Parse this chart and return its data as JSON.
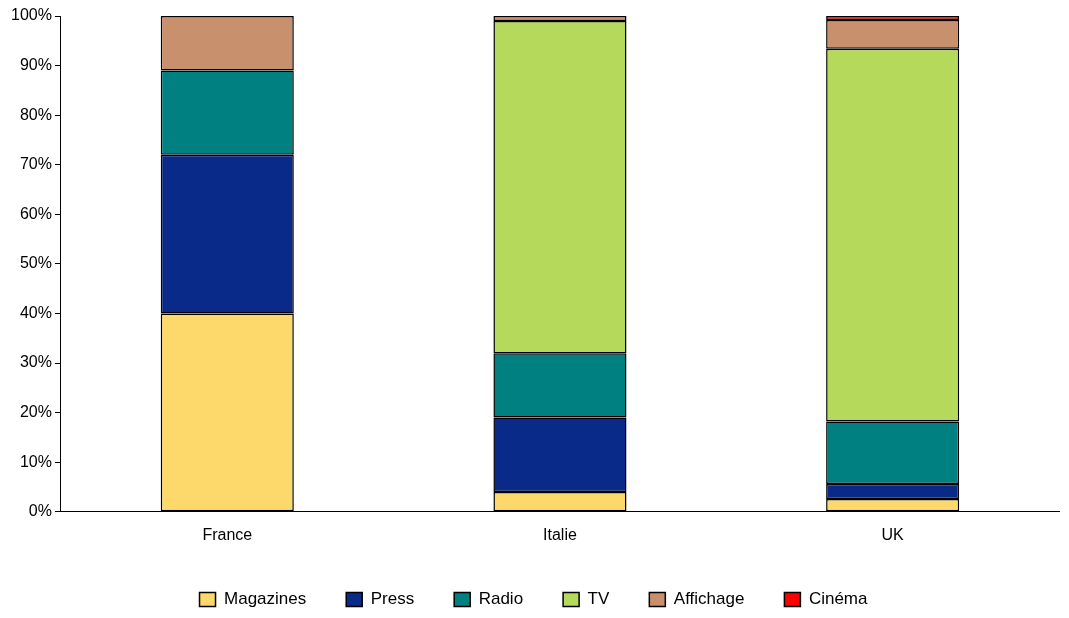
{
  "chart_data": {
    "type": "bar",
    "stacked": true,
    "categories": [
      "France",
      "Italie",
      "UK"
    ],
    "series": [
      {
        "name": "Magazines",
        "color": "#fcd96a",
        "values": [
          40,
          4,
          2.6
        ]
      },
      {
        "name": "Press",
        "color": "#0a2a8a",
        "values": [
          32,
          15,
          3
        ]
      },
      {
        "name": "Radio",
        "color": "#008080",
        "values": [
          17,
          13,
          12.6
        ]
      },
      {
        "name": "TV",
        "color": "#b5d95a",
        "values": [
          0,
          67,
          75.2
        ]
      },
      {
        "name": "Affichage",
        "color": "#c8906c",
        "values": [
          11,
          1,
          5.8
        ]
      },
      {
        "name": "Cinéma",
        "color": "#ff0000",
        "values": [
          0,
          0,
          0.8
        ]
      }
    ],
    "ylim": [
      0,
      100
    ],
    "yticks": [
      {
        "value": 0,
        "label": "0%"
      },
      {
        "value": 10,
        "label": "10%"
      },
      {
        "value": 20,
        "label": "20%"
      },
      {
        "value": 30,
        "label": "30%"
      },
      {
        "value": 40,
        "label": "40%"
      },
      {
        "value": 50,
        "label": "50%"
      },
      {
        "value": 60,
        "label": "60%"
      },
      {
        "value": 70,
        "label": "70%"
      },
      {
        "value": 80,
        "label": "80%"
      },
      {
        "value": 90,
        "label": "90%"
      },
      {
        "value": 100,
        "label": "100%"
      }
    ],
    "grid": false,
    "legend": "bottom"
  }
}
